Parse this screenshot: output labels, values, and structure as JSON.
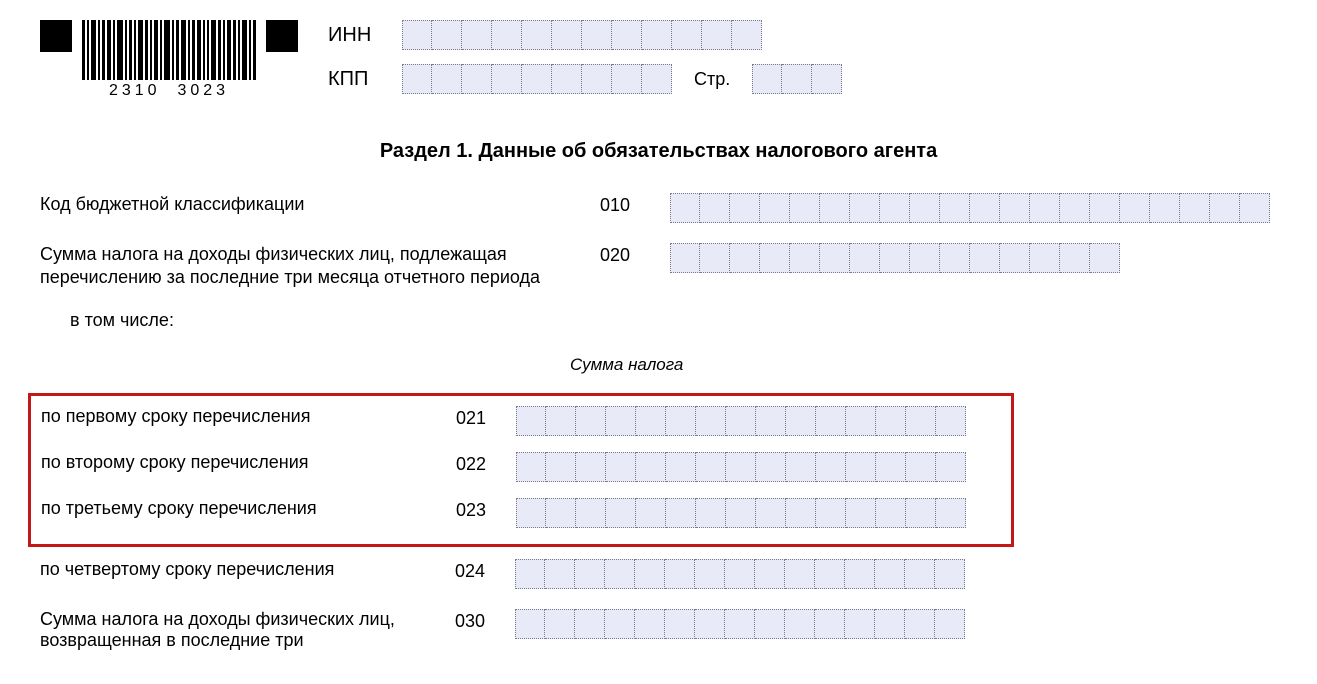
{
  "header": {
    "barcode_num_left": "2310",
    "barcode_num_right": "3023",
    "inn_label": "ИНН",
    "kpp_label": "КПП",
    "page_label": "Стр.",
    "inn_cells": 12,
    "kpp_cells": 9,
    "page_cells": 3
  },
  "section_title": "Раздел 1. Данные об обязательствах налогового агента",
  "rows": {
    "r010": {
      "label": "Код бюджетной классификации",
      "code": "010",
      "cells": 20
    },
    "r020": {
      "label": "Сумма налога на доходы физических лиц, подлежащая перечислению за последние три месяца отчетного периода",
      "code": "020",
      "cells": 15
    },
    "including_label": "в том числе:",
    "column_header": "Сумма налога",
    "r021": {
      "label": "по первому сроку перечисления",
      "code": "021",
      "cells": 15
    },
    "r022": {
      "label": "по второму сроку перечисления",
      "code": "022",
      "cells": 15
    },
    "r023": {
      "label": "по третьему сроку перечисления",
      "code": "023",
      "cells": 15
    },
    "r024": {
      "label": "по четвертому сроку перечисления",
      "code": "024",
      "cells": 15
    },
    "r030": {
      "label": "Сумма налога на доходы физических лиц, возвращенная в последние три",
      "code": "030",
      "cells": 15
    }
  },
  "colors": {
    "cell_bg": "#e8ebf7",
    "cell_border": "#7a7a8a",
    "highlight_border": "#c41818",
    "black": "#000000",
    "background": "#ffffff"
  }
}
